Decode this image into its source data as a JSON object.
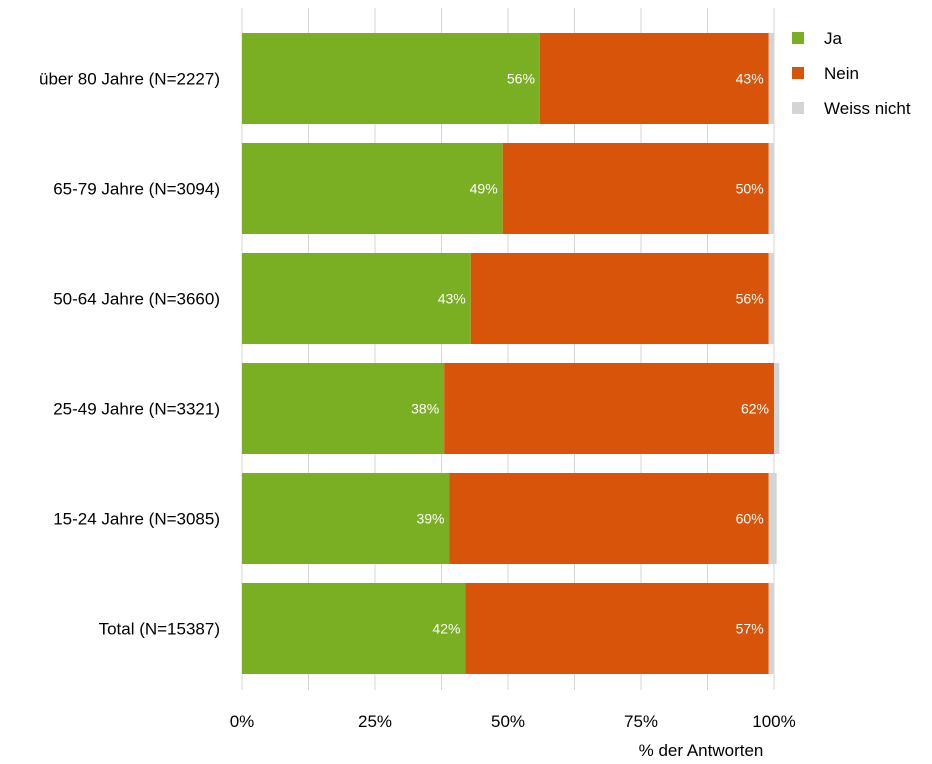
{
  "chart_data": {
    "type": "bar",
    "orientation": "horizontal",
    "stacked": true,
    "categories": [
      "über 80 Jahre (N=2227)",
      "65-79 Jahre (N=3094)",
      "50-64 Jahre (N=3660)",
      "25-49 Jahre (N=3321)",
      "15-24 Jahre (N=3085)",
      "Total (N=15387)"
    ],
    "series": [
      {
        "name": "Ja",
        "color": "#7aaf23",
        "values": [
          56,
          49,
          43,
          38,
          39,
          42
        ],
        "labels": [
          "56%",
          "49%",
          "43%",
          "38%",
          "39%",
          "42%"
        ]
      },
      {
        "name": "Nein",
        "color": "#d9540b",
        "values": [
          43,
          50,
          56,
          62,
          60,
          57
        ],
        "labels": [
          "43%",
          "50%",
          "56%",
          "62%",
          "60%",
          "57%"
        ]
      },
      {
        "name": "Weiss nicht",
        "color": "#d4d4d4",
        "values": [
          1,
          1,
          1,
          1,
          1.5,
          1
        ],
        "labels": [
          "",
          "",
          "",
          "",
          "",
          ""
        ]
      }
    ],
    "xlabel": "% der Antworten",
    "ylabel": "",
    "xlim": [
      0,
      100
    ],
    "ticks": [
      "0%",
      "25%",
      "50%",
      "75%",
      "100%"
    ],
    "tick_values": [
      0,
      25,
      50,
      75,
      100
    ],
    "grid": true,
    "legend_position": "top-right"
  }
}
